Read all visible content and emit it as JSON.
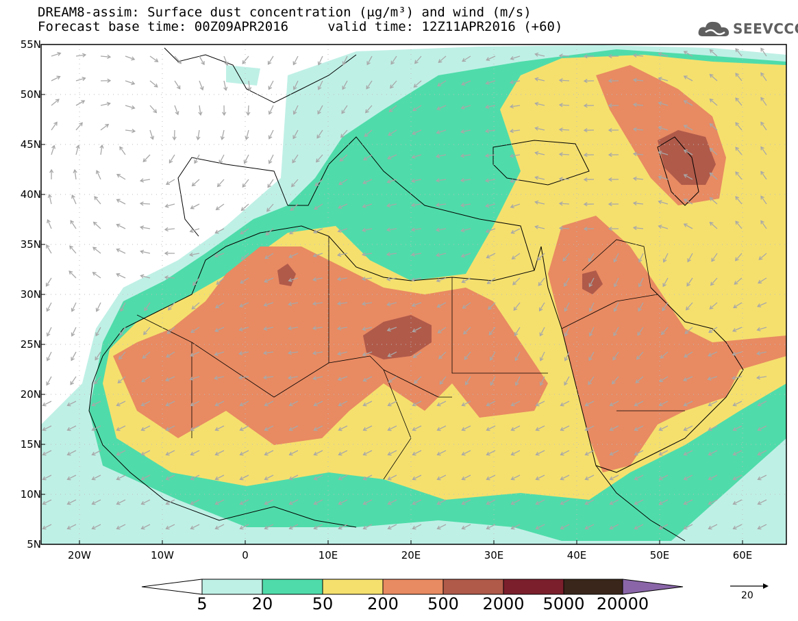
{
  "header": {
    "title_line1": "DREAM8-assim: Surface dust concentration (μg/m³) and wind (m/s)",
    "title_line2": "Forecast base time: 00Z09APR2016     valid time: 12Z11APR2016 (+60)"
  },
  "logo": {
    "text": "SEEVCCC",
    "icon": "cloud-logo-icon"
  },
  "map": {
    "lat_labels": [
      "55N",
      "50N",
      "45N",
      "40N",
      "35N",
      "30N",
      "25N",
      "20N",
      "15N",
      "10N",
      "5N"
    ],
    "lon_labels": [
      "20W",
      "10W",
      "0",
      "10E",
      "20E",
      "30E",
      "40E",
      "50E",
      "60E"
    ],
    "lat_range": [
      5,
      55
    ],
    "lon_range": [
      -25,
      65
    ],
    "grid": true
  },
  "colorbar": {
    "labels": [
      "5",
      "20",
      "50",
      "200",
      "500",
      "2000",
      "5000",
      "20000"
    ],
    "colors": [
      "#bff0e6",
      "#4fdcaa",
      "#f5e06e",
      "#e88a62",
      "#b05a4a",
      "#7c1f2c",
      "#3a261a",
      "#8a66a8"
    ]
  },
  "wind_reference": {
    "value": "20"
  },
  "colors": {
    "land": "#ffffff",
    "wind_arrow": "#a8a8a8",
    "coast": "#000000"
  }
}
